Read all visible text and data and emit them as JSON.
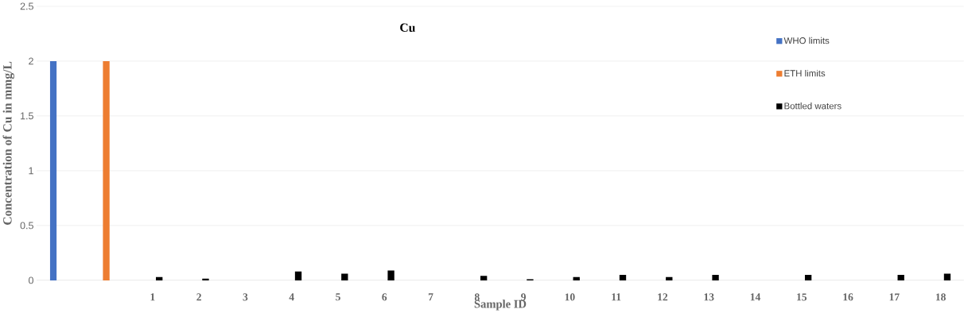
{
  "chart_data": {
    "type": "bar",
    "title": "Cu",
    "xlabel": "Sample ID",
    "ylabel": "Concentration of Cu in mmg/L",
    "categories": [
      null,
      null,
      "1",
      "2",
      "3",
      "4",
      "5",
      "6",
      "7",
      "8",
      "9",
      "10",
      "11",
      "12",
      "13",
      "14",
      "15",
      "16",
      "17",
      "18"
    ],
    "series": [
      {
        "name": "WHO limits",
        "color": "#4472c4",
        "values": [
          2,
          null,
          null,
          null,
          null,
          null,
          null,
          null,
          null,
          null,
          null,
          null,
          null,
          null,
          null,
          null,
          null,
          null,
          null,
          null
        ]
      },
      {
        "name": "ETH limits",
        "color": "#ed7d31",
        "values": [
          null,
          2,
          null,
          null,
          null,
          null,
          null,
          null,
          null,
          null,
          null,
          null,
          null,
          null,
          null,
          null,
          null,
          null,
          null,
          null
        ]
      },
      {
        "name": "Bottled waters",
        "color": "#000000",
        "values": [
          null,
          null,
          0.03,
          0.015,
          0,
          0.08,
          0.06,
          0.09,
          0,
          0.04,
          0.01,
          0.03,
          0.05,
          0.03,
          0.05,
          0,
          0.05,
          0,
          0.05,
          0.06
        ]
      }
    ],
    "ylim": [
      0,
      2.5
    ],
    "yticks": [
      0,
      0.5,
      1,
      1.5,
      2,
      2.5
    ],
    "grid": "y",
    "legend": "top right"
  }
}
